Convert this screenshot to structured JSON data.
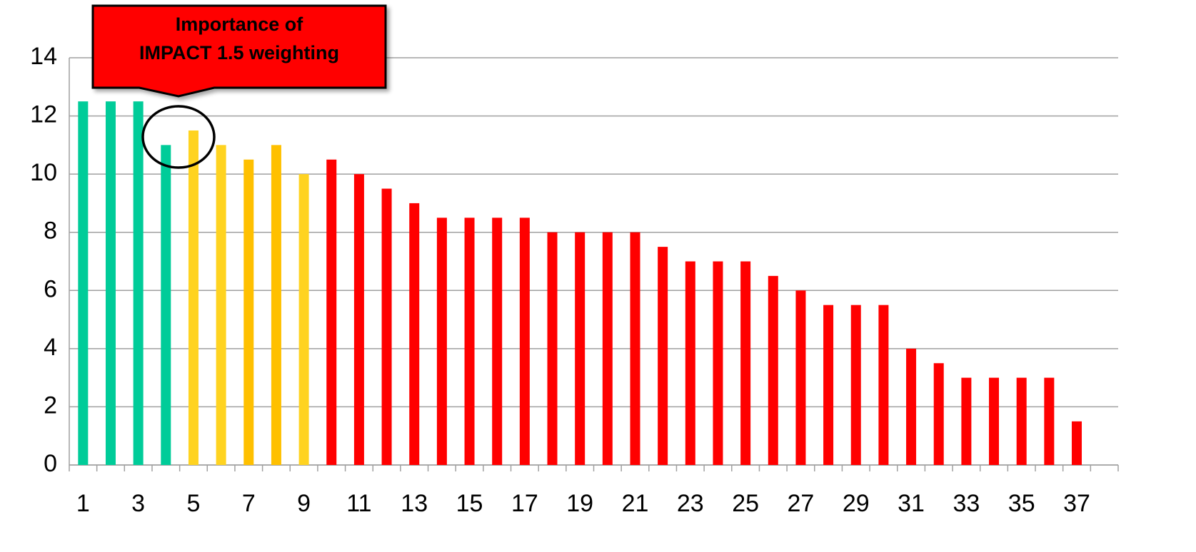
{
  "chart_data": {
    "type": "bar",
    "categories": [
      1,
      null,
      3,
      null,
      5,
      null,
      7,
      null,
      9,
      null,
      11,
      null,
      13,
      null,
      15,
      null,
      17,
      null,
      19,
      null,
      21,
      null,
      23,
      null,
      25,
      null,
      27,
      null,
      29,
      null,
      31,
      null,
      33,
      null,
      35,
      null,
      37,
      null
    ],
    "values": [
      12.5,
      12.5,
      12.5,
      11,
      11.5,
      11,
      10.5,
      11,
      10,
      10.5,
      10,
      9.5,
      9,
      8.5,
      8.5,
      8.5,
      8.5,
      8,
      8,
      8,
      8,
      7.5,
      7,
      7,
      7,
      6.5,
      6,
      5.5,
      5.5,
      5.5,
      4,
      3.5,
      3,
      3,
      3,
      3,
      1.5,
      null
    ],
    "colors": [
      "#00cc99",
      "#00cc99",
      "#00cc99",
      "#00cc99",
      "#ffd320",
      "#ffd320",
      "#ffc000",
      "#ffc000",
      "#ffd320",
      "#ff0000",
      "#ff0000",
      "#ff0000",
      "#ff0000",
      "#ff0000",
      "#ff0000",
      "#ff0000",
      "#ff0000",
      "#ff0000",
      "#ff0000",
      "#ff0000",
      "#ff0000",
      "#ff0000",
      "#ff0000",
      "#ff0000",
      "#ff0000",
      "#ff0000",
      "#ff0000",
      "#ff0000",
      "#ff0000",
      "#ff0000",
      "#ff0000",
      "#ff0000",
      "#ff0000",
      "#ff0000",
      "#ff0000",
      "#ff0000",
      "#ff0000",
      "#ff0000"
    ],
    "ylim": [
      0,
      14
    ],
    "yticks": [
      0,
      2,
      4,
      6,
      8,
      10,
      12,
      14
    ],
    "grid": true,
    "annotation": {
      "lines": [
        "Importance of",
        "IMPACT 1.5 weighting"
      ]
    }
  }
}
